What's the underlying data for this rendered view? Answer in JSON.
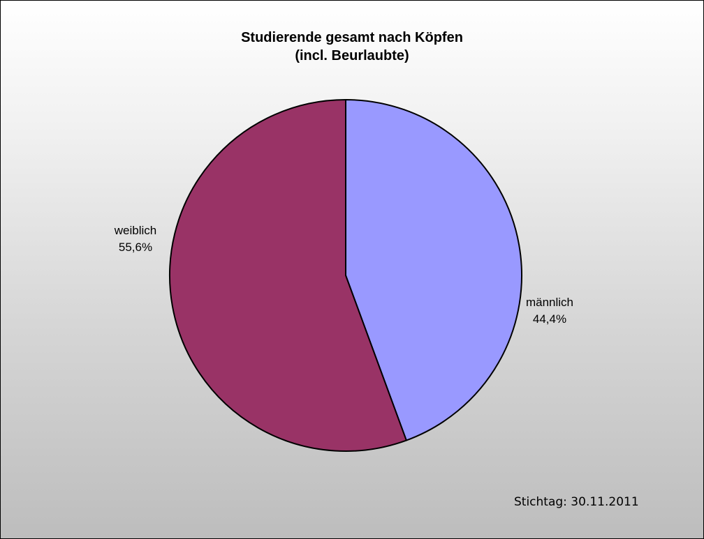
{
  "chart_data": {
    "type": "pie",
    "title": "Studierende gesamt nach Köpfen",
    "subtitle": "(incl. Beurlaubte)",
    "slices": [
      {
        "label": "männlich",
        "value": 44.4,
        "value_label": "44,4%",
        "color": "#9999ff"
      },
      {
        "label": "weiblich",
        "value": 55.6,
        "value_label": "55,6%",
        "color": "#993366"
      }
    ],
    "start_angle_deg": 0,
    "direction": "clockwise",
    "legend": "none",
    "note": "Stichtag: 30.11.2011"
  },
  "colors": {
    "outline": "#000000",
    "background_top": "#ffffff",
    "background_bottom": "#bdbdbd"
  }
}
